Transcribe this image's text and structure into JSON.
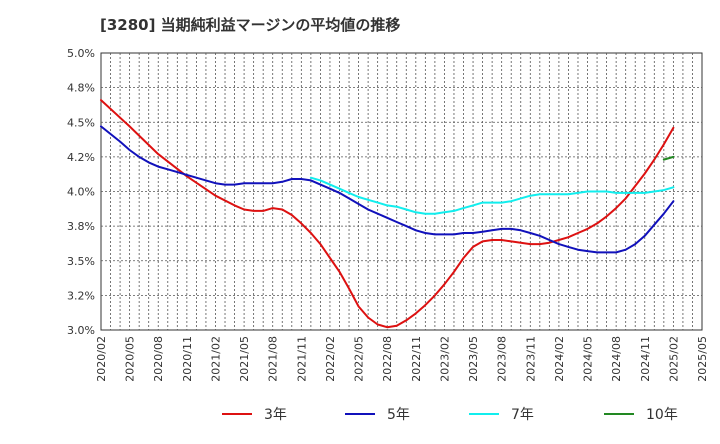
{
  "chart_data": {
    "type": "line",
    "title": "[3280]  当期純利益マージンの平均値の推移",
    "xlabel": "",
    "ylabel": "",
    "x_ticks": [
      "2020/02",
      "2020/05",
      "2020/08",
      "2020/11",
      "2021/02",
      "2021/05",
      "2021/08",
      "2021/11",
      "2022/02",
      "2022/05",
      "2022/08",
      "2022/11",
      "2023/02",
      "2023/05",
      "2023/08",
      "2023/11",
      "2024/02",
      "2024/05",
      "2024/08",
      "2024/11",
      "2025/02",
      "2025/05"
    ],
    "y_ticks": [
      "3.0%",
      "3.2%",
      "3.5%",
      "3.8%",
      "4.0%",
      "4.2%",
      "4.5%",
      "4.8%",
      "5.0%"
    ],
    "ylim": [
      3.0,
      5.0
    ],
    "grid": true,
    "legend_position": "bottom",
    "series": [
      {
        "name": "3年",
        "color": "#dd1111",
        "x": [
          "2020/02",
          "2020/05",
          "2020/08",
          "2020/11",
          "2021/02",
          "2021/04",
          "2021/05",
          "2021/06",
          "2021/07",
          "2021/08",
          "2021/09",
          "2021/10",
          "2021/11",
          "2021/12",
          "2022/01",
          "2022/02",
          "2022/03",
          "2022/04",
          "2022/05",
          "2022/06",
          "2022/07",
          "2022/08",
          "2022/09",
          "2022/10",
          "2022/11",
          "2022/12",
          "2023/01",
          "2023/02",
          "2023/03",
          "2023/04",
          "2023/05",
          "2023/06",
          "2023/07",
          "2023/08",
          "2023/09",
          "2023/10",
          "2023/11",
          "2023/12",
          "2024/01",
          "2024/02",
          "2024/03",
          "2024/04",
          "2024/05",
          "2024/06",
          "2024/07",
          "2024/08",
          "2024/09",
          "2024/10",
          "2024/11",
          "2024/12",
          "2025/01",
          "2025/02"
        ],
        "values": [
          4.66,
          4.47,
          4.27,
          4.11,
          3.97,
          3.9,
          3.87,
          3.86,
          3.86,
          3.88,
          3.87,
          3.83,
          3.77,
          3.7,
          3.62,
          3.52,
          3.42,
          3.3,
          3.17,
          3.09,
          3.04,
          3.02,
          3.03,
          3.07,
          3.12,
          3.18,
          3.25,
          3.33,
          3.42,
          3.52,
          3.6,
          3.64,
          3.65,
          3.65,
          3.64,
          3.63,
          3.62,
          3.62,
          3.63,
          3.65,
          3.67,
          3.7,
          3.73,
          3.77,
          3.82,
          3.88,
          3.95,
          4.04,
          4.13,
          4.23,
          4.34,
          4.46
        ]
      },
      {
        "name": "5年",
        "color": "#1111bb",
        "x": [
          "2020/02",
          "2020/04",
          "2020/05",
          "2020/06",
          "2020/07",
          "2020/08",
          "2020/09",
          "2020/10",
          "2020/11",
          "2020/12",
          "2021/01",
          "2021/02",
          "2021/03",
          "2021/04",
          "2021/05",
          "2021/06",
          "2021/07",
          "2021/08",
          "2021/09",
          "2021/10",
          "2021/11",
          "2021/12",
          "2022/01",
          "2022/02",
          "2022/03",
          "2022/04",
          "2022/05",
          "2022/06",
          "2022/07",
          "2022/08",
          "2022/09",
          "2022/10",
          "2022/11",
          "2022/12",
          "2023/01",
          "2023/02",
          "2023/03",
          "2023/04",
          "2023/05",
          "2023/06",
          "2023/07",
          "2023/08",
          "2023/09",
          "2023/10",
          "2023/11",
          "2023/12",
          "2024/01",
          "2024/02",
          "2024/03",
          "2024/04",
          "2024/05",
          "2024/06",
          "2024/07",
          "2024/08",
          "2024/09",
          "2024/10",
          "2024/11",
          "2024/12",
          "2025/01",
          "2025/02"
        ],
        "values": [
          4.47,
          4.36,
          4.3,
          4.25,
          4.21,
          4.18,
          4.16,
          4.14,
          4.12,
          4.1,
          4.08,
          4.06,
          4.05,
          4.05,
          4.06,
          4.06,
          4.06,
          4.06,
          4.07,
          4.09,
          4.09,
          4.08,
          4.05,
          4.02,
          3.99,
          3.95,
          3.91,
          3.87,
          3.84,
          3.81,
          3.78,
          3.75,
          3.72,
          3.7,
          3.69,
          3.69,
          3.69,
          3.7,
          3.7,
          3.71,
          3.72,
          3.73,
          3.73,
          3.72,
          3.7,
          3.68,
          3.65,
          3.62,
          3.6,
          3.58,
          3.57,
          3.56,
          3.56,
          3.56,
          3.58,
          3.62,
          3.68,
          3.76,
          3.84,
          3.93
        ]
      },
      {
        "name": "7年",
        "color": "#11eeee",
        "x": [
          "2021/12",
          "2022/01",
          "2022/02",
          "2022/03",
          "2022/04",
          "2022/05",
          "2022/06",
          "2022/07",
          "2022/08",
          "2022/09",
          "2022/10",
          "2022/11",
          "2022/12",
          "2023/01",
          "2023/02",
          "2023/03",
          "2023/04",
          "2023/05",
          "2023/06",
          "2023/07",
          "2023/08",
          "2023/09",
          "2023/10",
          "2023/11",
          "2023/12",
          "2024/01",
          "2024/02",
          "2024/03",
          "2024/04",
          "2024/05",
          "2024/06",
          "2024/07",
          "2024/08",
          "2024/09",
          "2024/10",
          "2024/11",
          "2024/12",
          "2025/01",
          "2025/02"
        ],
        "values": [
          4.1,
          4.08,
          4.05,
          4.02,
          3.99,
          3.96,
          3.94,
          3.92,
          3.9,
          3.89,
          3.87,
          3.85,
          3.84,
          3.84,
          3.85,
          3.86,
          3.88,
          3.9,
          3.92,
          3.92,
          3.92,
          3.93,
          3.95,
          3.97,
          3.98,
          3.98,
          3.98,
          3.98,
          3.99,
          4.0,
          4.0,
          4.0,
          3.99,
          3.99,
          3.99,
          3.99,
          4.0,
          4.01,
          4.03
        ]
      },
      {
        "name": "10年",
        "color": "#228822",
        "x": [
          "2025/01",
          "2025/02"
        ],
        "values": [
          4.23,
          4.25
        ]
      }
    ]
  }
}
